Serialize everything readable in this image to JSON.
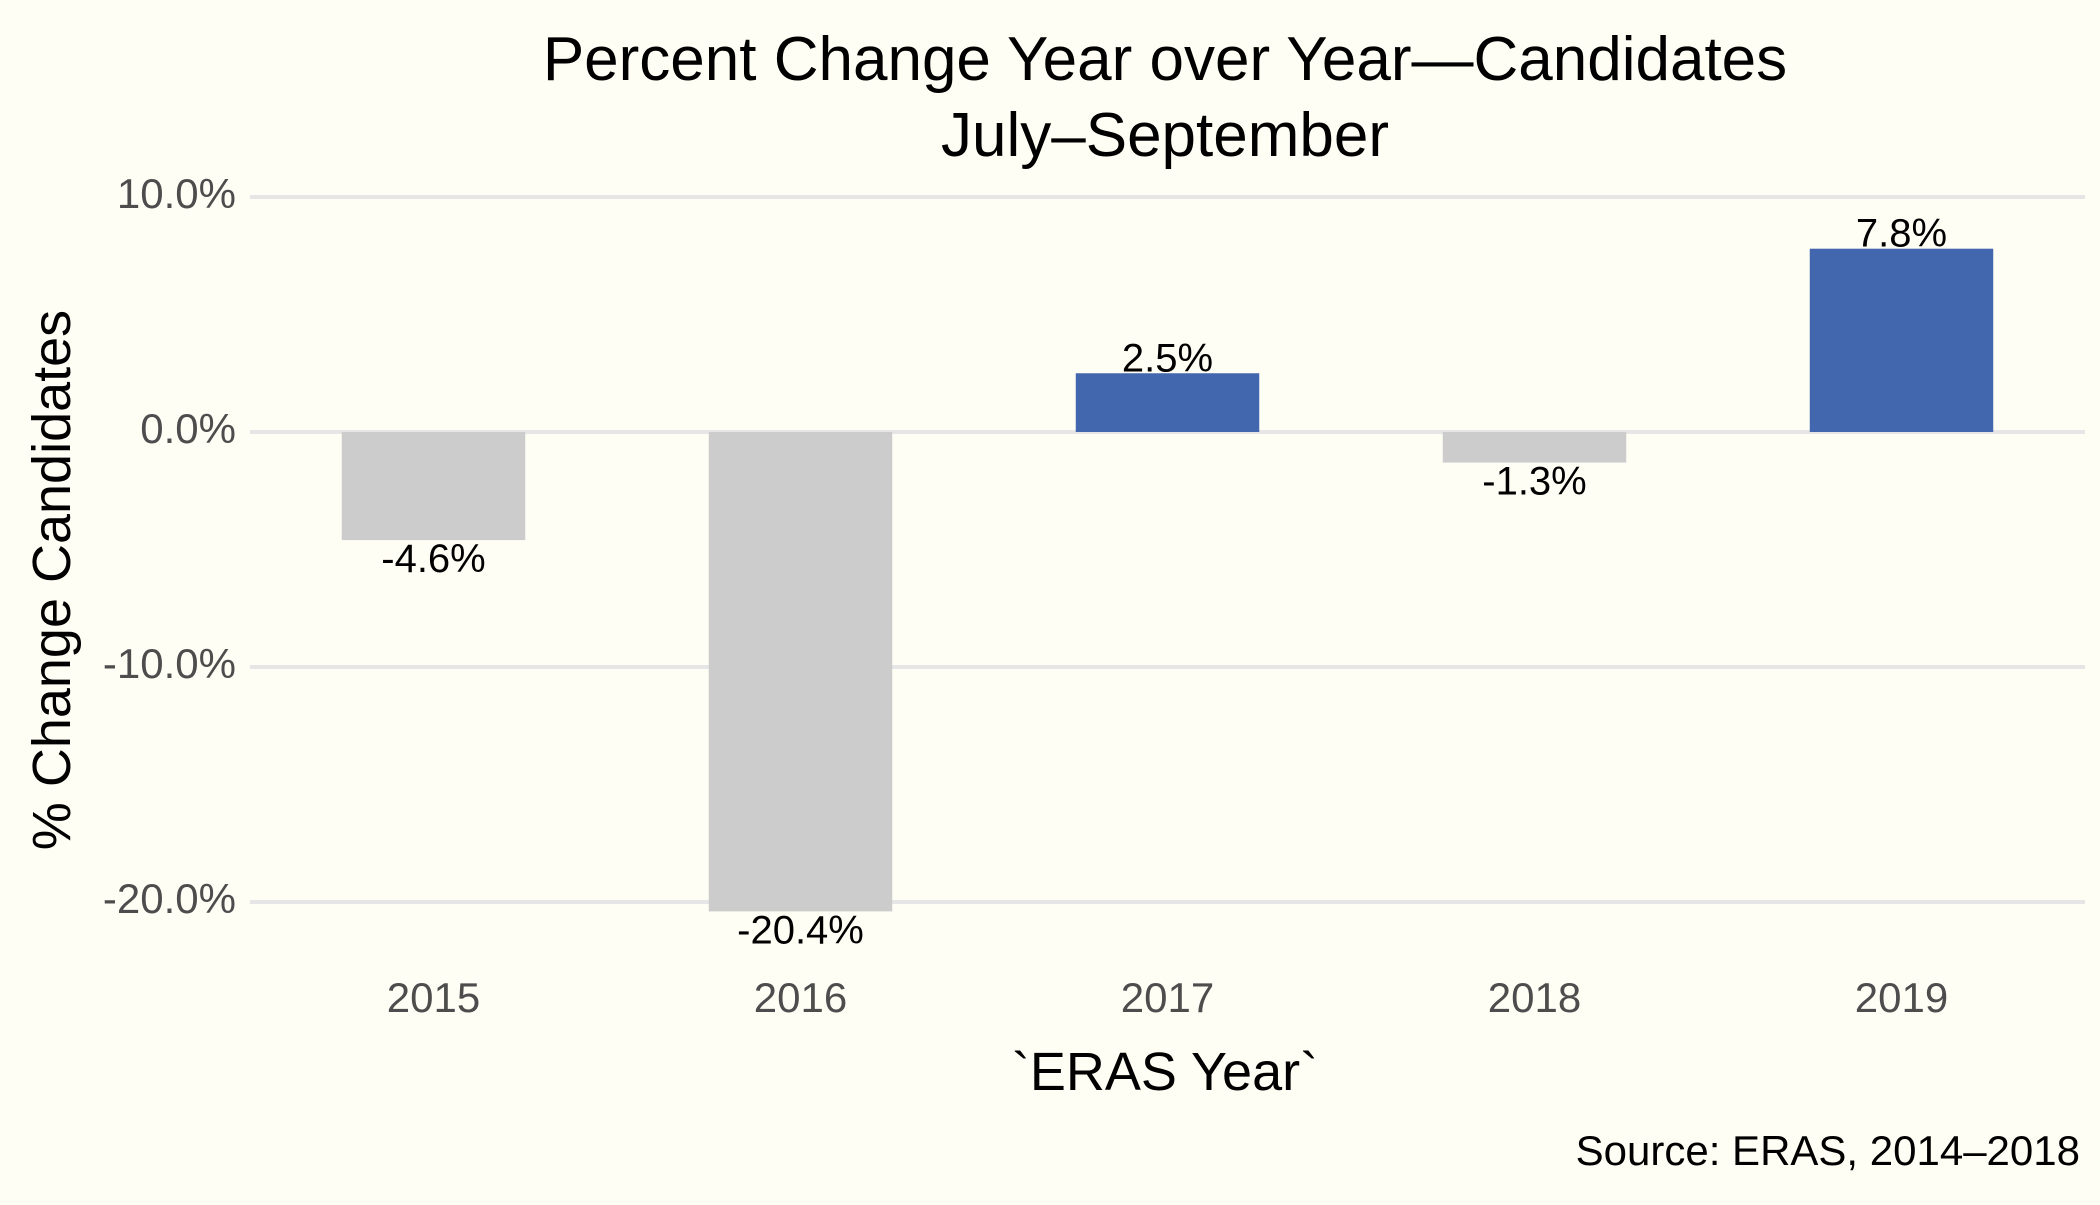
{
  "chart_data": {
    "type": "bar",
    "title": [
      "Percent Change Year over Year—Candidates",
      "July–September"
    ],
    "xlabel": "`ERAS Year`",
    "ylabel": "% Change Candidates",
    "caption": "Source: ERAS, 2014–2018",
    "categories": [
      "2015",
      "2016",
      "2017",
      "2018",
      "2019"
    ],
    "values": [
      -4.6,
      -20.4,
      2.5,
      -1.3,
      7.8
    ],
    "value_labels": [
      "-4.6%",
      "-20.4%",
      "2.5%",
      "-1.3%",
      "7.8%"
    ],
    "y_ticks": [
      10,
      0,
      -10,
      -20
    ],
    "y_tick_labels": [
      "10.0%",
      "0.0%",
      "-10.0%",
      "-20.0%"
    ],
    "ylim": [
      -22.5,
      10
    ],
    "grid": true,
    "legend": "none",
    "colors": {
      "positive": "#4267ae",
      "negative": "#cccccc",
      "background": "#fffef5",
      "grid": "#e6e6e6"
    }
  }
}
